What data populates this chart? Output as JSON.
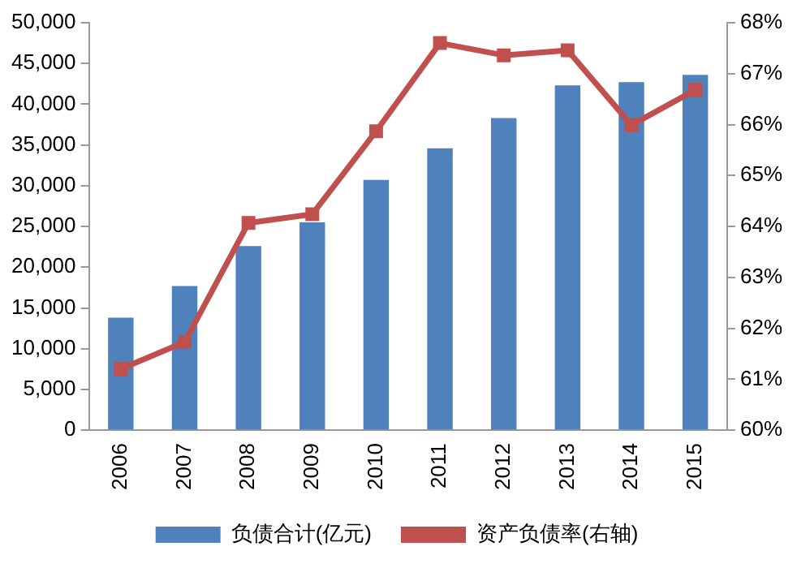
{
  "chart_data": {
    "type": "bar",
    "categories": [
      "2006",
      "2007",
      "2008",
      "2009",
      "2010",
      "2011",
      "2012",
      "2013",
      "2014",
      "2015"
    ],
    "series": [
      {
        "name": "负债合计(亿元)",
        "color": "#4f81bd",
        "values": [
          13800,
          17700,
          22600,
          25500,
          30700,
          34600,
          38300,
          42300,
          42700,
          43600
        ]
      },
      {
        "name": "资产负债率(右轴)",
        "type": "line",
        "axis": "y2",
        "color": "#c0504d",
        "values": [
          61.2,
          61.73,
          64.07,
          64.24,
          65.87,
          67.6,
          67.36,
          67.46,
          65.99,
          66.68
        ]
      }
    ],
    "ylim": [
      0,
      50000
    ],
    "yticks": [
      {
        "value": 0,
        "label": "0"
      },
      {
        "value": 5000,
        "label": "5,000"
      },
      {
        "value": 10000,
        "label": "10,000"
      },
      {
        "value": 15000,
        "label": "15,000"
      },
      {
        "value": 20000,
        "label": "20,000"
      },
      {
        "value": 25000,
        "label": "25,000"
      },
      {
        "value": 30000,
        "label": "30,000"
      },
      {
        "value": 35000,
        "label": "35,000"
      },
      {
        "value": 40000,
        "label": "40,000"
      },
      {
        "value": 45000,
        "label": "45,000"
      },
      {
        "value": 50000,
        "label": "50,000"
      }
    ],
    "y2lim": [
      60,
      68
    ],
    "y2ticks": [
      {
        "value": 60,
        "label": "60%"
      },
      {
        "value": 61,
        "label": "61%"
      },
      {
        "value": 62,
        "label": "62%"
      },
      {
        "value": 63,
        "label": "63%"
      },
      {
        "value": 64,
        "label": "64%"
      },
      {
        "value": 65,
        "label": "65%"
      },
      {
        "value": 66,
        "label": "66%"
      },
      {
        "value": 67,
        "label": "67%"
      },
      {
        "value": 68,
        "label": "68%"
      }
    ],
    "grid": false,
    "legend": "bottom",
    "marker": "square"
  }
}
